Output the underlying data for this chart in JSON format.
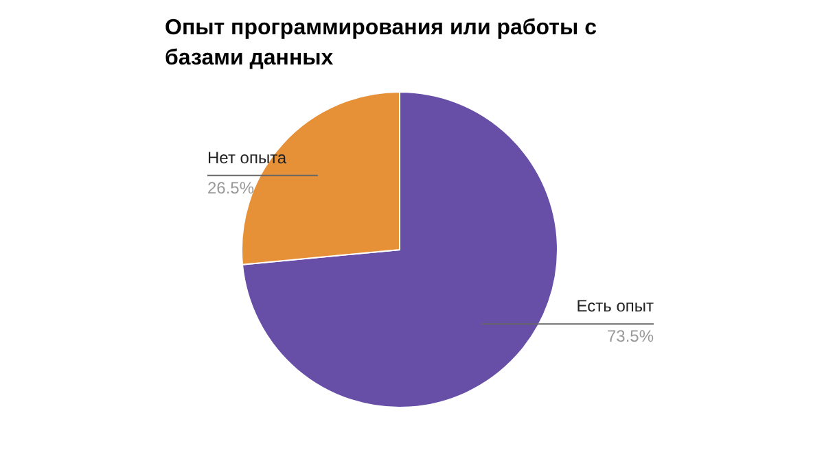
{
  "chart_data": {
    "type": "pie",
    "title": "Опыт программирования или работы с базами данных",
    "categories": [
      "Есть опыт",
      "Нет опыта"
    ],
    "values": [
      73.5,
      26.5
    ],
    "value_labels": [
      "73.5%",
      "26.5%"
    ],
    "colors": [
      "#674ea7",
      "#e69138"
    ]
  }
}
